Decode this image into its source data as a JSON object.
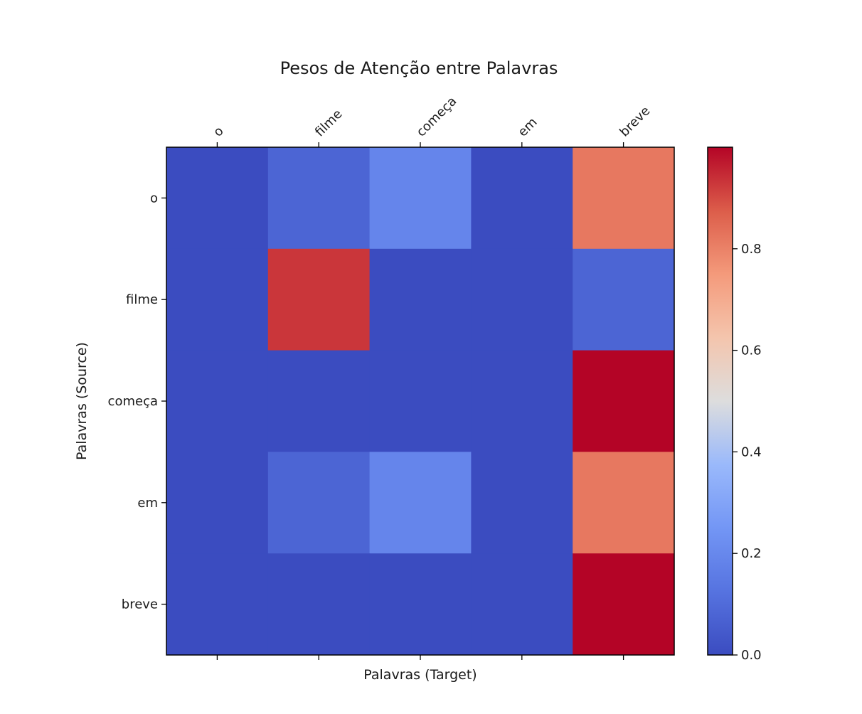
{
  "chart_data": {
    "type": "heatmap",
    "title": "Pesos de Atenção entre Palavras",
    "xlabel": "Palavras (Target)",
    "ylabel": "Palavras (Source)",
    "x_categories": [
      "o",
      "filme",
      "começa",
      "em",
      "breve"
    ],
    "y_categories": [
      "o",
      "filme",
      "começa",
      "em",
      "breve"
    ],
    "values": [
      [
        0.0,
        0.08,
        0.19,
        0.0,
        0.82
      ],
      [
        0.0,
        0.93,
        0.0,
        0.0,
        0.08
      ],
      [
        0.0,
        0.0,
        0.0,
        0.0,
        1.0
      ],
      [
        0.0,
        0.08,
        0.19,
        0.0,
        0.82
      ],
      [
        0.0,
        0.0,
        0.0,
        0.0,
        1.0
      ]
    ],
    "colormap": "coolwarm",
    "colorbar": {
      "min": 0.0,
      "max": 1.0,
      "ticks": [
        0.0,
        0.2,
        0.4,
        0.6,
        0.8
      ],
      "tick_labels": [
        "0.0",
        "0.2",
        "0.4",
        "0.6",
        "0.8"
      ]
    },
    "x_tick_position": "top-and-bottom",
    "x_labels_position": "top"
  }
}
